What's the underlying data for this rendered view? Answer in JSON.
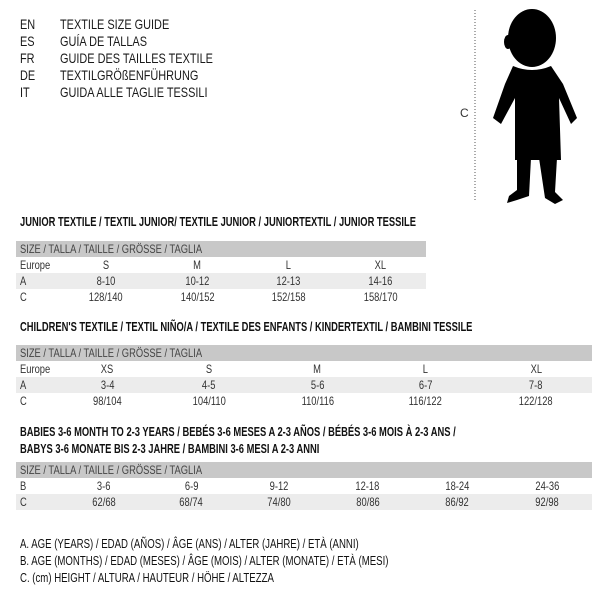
{
  "title_lines": [
    {
      "code": "EN",
      "text": "TEXTILE SIZE GUIDE"
    },
    {
      "code": "ES",
      "text": "GUÍA DE TALLAS"
    },
    {
      "code": "FR",
      "text": "GUIDE DES TAILLES TEXTILE"
    },
    {
      "code": "DE",
      "text": "TEXTILGRÖßENFÜHRUNG"
    },
    {
      "code": "IT",
      "text": "GUIDA ALLE TAGLIE TESSILI"
    }
  ],
  "figure": {
    "measure_label": "C",
    "icon": "child-silhouette"
  },
  "size_header": "SIZE / TALLA / TAILLE / GRÖSSE / TAGLIA",
  "junior": {
    "title": "JUNIOR TEXTILE / TEXTIL JUNIOR/ TEXTILE JUNIOR / JUNIORTEXTIL / JUNIOR TESSILE",
    "rows": [
      {
        "label": "Europe",
        "values": [
          "S",
          "M",
          "L",
          "XL"
        ]
      },
      {
        "label": "A",
        "values": [
          "8-10",
          "10-12",
          "12-13",
          "14-16"
        ]
      },
      {
        "label": "C",
        "values": [
          "128/140",
          "140/152",
          "152/158",
          "158/170"
        ]
      }
    ]
  },
  "children": {
    "title": "CHILDREN'S TEXTILE / TEXTIL NIÑO/A / TEXTILE DES ENFANTS / KINDERTEXTIL / BAMBINI TESSILE",
    "rows": [
      {
        "label": "Europe",
        "values": [
          "XS",
          "S",
          "M",
          "L",
          "XL"
        ]
      },
      {
        "label": "A",
        "values": [
          "3-4",
          "4-5",
          "5-6",
          "6-7",
          "7-8"
        ]
      },
      {
        "label": "C",
        "values": [
          "98/104",
          "104/110",
          "110/116",
          "116/122",
          "122/128"
        ]
      }
    ]
  },
  "babies": {
    "title_line1": "BABIES 3-6 MONTH TO 2-3 YEARS / BEBÉS 3-6 MESES A 2-3 AÑOS / BÉBÉS 3-6 MOIS À 2-3 ANS /",
    "title_line2": "BABYS 3-6 MONATE BIS 2-3 JAHRE / BAMBINI 3-6 MESI A 2-3 ANNI",
    "rows": [
      {
        "label": "B",
        "values": [
          "3-6",
          "6-9",
          "9-12",
          "12-18",
          "18-24",
          "24-36"
        ]
      },
      {
        "label": "C",
        "values": [
          "62/68",
          "68/74",
          "74/80",
          "80/86",
          "86/92",
          "92/98"
        ]
      }
    ]
  },
  "legend": [
    "A. AGE (YEARS) / EDAD (AÑOS) / ÂGE (ANS) / ALTER (JAHRE) / ETÀ (ANNI)",
    "B. AGE (MONTHS) / EDAD (MESES) / ÂGE (MOIS) / ALTER (MONATE) / ETÀ (MESI)",
    "C. (cm) HEIGHT / ALTURA / HAUTEUR / HÖHE / ALTEZZA"
  ]
}
